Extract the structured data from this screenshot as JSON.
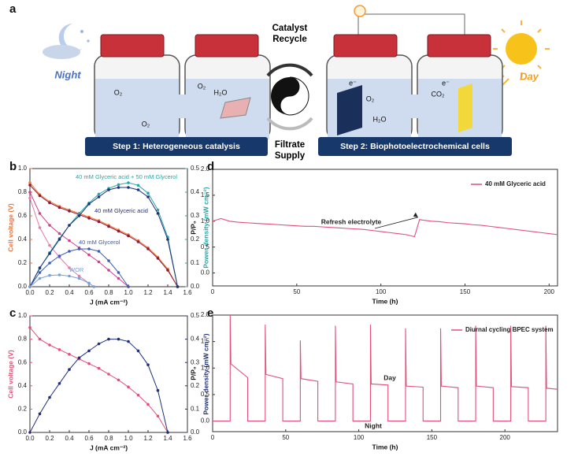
{
  "panel_a": {
    "panel": "a",
    "night": "Night",
    "day": "Day",
    "catalyst_recycle": [
      "Catalyst",
      "Recycle"
    ],
    "filtrate_supply": [
      "Filtrate",
      "Supply"
    ],
    "step1": "Step 1: Heterogeneous catalysis",
    "step2": "Step 2: Biophotoelectrochemical cells",
    "labels": [
      "O₂",
      "O₂",
      "O₂",
      "H₂O",
      "O₂",
      "H₂O",
      "CO₂",
      "e⁻",
      "e⁻"
    ]
  },
  "chart_data": [
    {
      "type": "line",
      "panel": "b",
      "markers": true,
      "legend": false,
      "xlabel": "J (mA cm⁻²)",
      "ylabel": "Cell voltage (V)",
      "y2label": "Power density (mW cm⁻²)",
      "ylabel_color": "#e8733a",
      "y2label_color": "#2aa5a5",
      "xlim": [
        0,
        1.6
      ],
      "ylim": [
        0,
        1.0
      ],
      "y2lim": [
        0,
        0.5
      ],
      "xticks": [
        {
          "value": 0,
          "label": "0.0"
        },
        0.2,
        0.4,
        0.6,
        0.8,
        {
          "value": 1,
          "label": "1.0"
        },
        1.2,
        1.4,
        1.6
      ],
      "yticks": [
        {
          "value": 0,
          "label": "0.0"
        },
        0.2,
        0.4,
        0.6,
        0.8,
        {
          "value": 1,
          "label": "1.0"
        }
      ],
      "y2ticks": [
        {
          "value": 0,
          "label": "0.0"
        },
        0.1,
        0.2,
        0.3,
        0.4,
        0.5
      ],
      "series": [
        {
          "color": "#f07830",
          "axis": "y",
          "x": [
            0,
            0.1,
            0.2,
            0.3,
            0.4,
            0.5,
            0.6,
            0.7,
            0.8,
            0.9,
            1.0,
            1.1,
            1.2,
            1.3,
            1.4,
            1.5
          ],
          "values": [
            0.88,
            0.78,
            0.72,
            0.68,
            0.65,
            0.62,
            0.59,
            0.56,
            0.52,
            0.48,
            0.44,
            0.39,
            0.33,
            0.25,
            0.15,
            0.0
          ]
        },
        {
          "color": "#8b1a3a",
          "axis": "y",
          "x": [
            0,
            0.1,
            0.2,
            0.3,
            0.4,
            0.5,
            0.6,
            0.7,
            0.8,
            0.9,
            1.0,
            1.1,
            1.2,
            1.3,
            1.4,
            1.5
          ],
          "values": [
            0.86,
            0.77,
            0.71,
            0.67,
            0.64,
            0.61,
            0.58,
            0.55,
            0.51,
            0.47,
            0.43,
            0.38,
            0.32,
            0.24,
            0.14,
            0.0
          ]
        },
        {
          "color": "#d0408a",
          "axis": "y",
          "x": [
            0,
            0.1,
            0.2,
            0.3,
            0.4,
            0.5,
            0.6,
            0.7,
            0.8,
            0.9,
            1.0
          ],
          "values": [
            0.8,
            0.62,
            0.52,
            0.45,
            0.39,
            0.33,
            0.27,
            0.21,
            0.14,
            0.07,
            0.0
          ]
        },
        {
          "color": "#e87aa8",
          "axis": "y",
          "x": [
            0,
            0.1,
            0.2,
            0.3,
            0.4,
            0.5,
            0.6,
            0.65
          ],
          "values": [
            0.75,
            0.5,
            0.35,
            0.25,
            0.16,
            0.09,
            0.03,
            0.0
          ]
        },
        {
          "name": "40 mM Glyceric acid + 50 mM Glycerol",
          "color": "#2aa5a5",
          "axis": "y2",
          "x": [
            0,
            0.1,
            0.2,
            0.3,
            0.4,
            0.5,
            0.6,
            0.7,
            0.8,
            0.9,
            1.0,
            1.1,
            1.2,
            1.3,
            1.4,
            1.5
          ],
          "values": [
            0,
            0.078,
            0.144,
            0.204,
            0.26,
            0.31,
            0.354,
            0.392,
            0.416,
            0.432,
            0.44,
            0.429,
            0.396,
            0.325,
            0.21,
            0
          ]
        },
        {
          "name": "40 mM Glyceric acid",
          "color": "#1f2f7a",
          "axis": "y2",
          "x": [
            0,
            0.1,
            0.2,
            0.3,
            0.4,
            0.5,
            0.6,
            0.7,
            0.8,
            0.9,
            1.0,
            1.1,
            1.2,
            1.3,
            1.4,
            1.5
          ],
          "values": [
            0,
            0.08,
            0.14,
            0.2,
            0.26,
            0.3,
            0.35,
            0.38,
            0.41,
            0.42,
            0.42,
            0.41,
            0.38,
            0.31,
            0.2,
            0
          ]
        },
        {
          "name": "40 mM Glycerol",
          "color": "#3a5bb5",
          "axis": "y2",
          "x": [
            0,
            0.1,
            0.2,
            0.3,
            0.4,
            0.5,
            0.6,
            0.7,
            0.8,
            0.9,
            1.0
          ],
          "values": [
            0,
            0.06,
            0.1,
            0.13,
            0.15,
            0.16,
            0.16,
            0.15,
            0.11,
            0.06,
            0
          ]
        },
        {
          "name": "WOR",
          "color": "#7aa0d8",
          "axis": "y2",
          "x": [
            0,
            0.1,
            0.2,
            0.3,
            0.4,
            0.5,
            0.6,
            0.65
          ],
          "values": [
            0,
            0.035,
            0.048,
            0.05,
            0.045,
            0.035,
            0.015,
            0
          ]
        }
      ]
    },
    {
      "type": "line",
      "panel": "c",
      "markers": true,
      "legend": false,
      "xlabel": "J (mA cm⁻²)",
      "ylabel": "Cell voltage (V)",
      "y2label": "Power density (mW cm⁻²)",
      "ylabel_color": "#e0507a",
      "y2label_color": "#1f2f7a",
      "xlim": [
        0,
        1.6
      ],
      "ylim": [
        0,
        1.0
      ],
      "y2lim": [
        0,
        0.5
      ],
      "xticks": [
        {
          "value": 0,
          "label": "0.0"
        },
        0.2,
        0.4,
        0.6,
        0.8,
        {
          "value": 1,
          "label": "1.0"
        },
        1.2,
        1.4,
        1.6
      ],
      "yticks": [
        {
          "value": 0,
          "label": "0.0"
        },
        0.2,
        0.4,
        0.6,
        0.8,
        {
          "value": 1,
          "label": "1.0"
        }
      ],
      "y2ticks": [
        {
          "value": 0,
          "label": "0.0"
        },
        0.1,
        0.2,
        0.3,
        0.4,
        0.5
      ],
      "series": [
        {
          "color": "#e0507a",
          "axis": "y",
          "x": [
            0,
            0.1,
            0.2,
            0.3,
            0.4,
            0.5,
            0.6,
            0.7,
            0.8,
            0.9,
            1.0,
            1.1,
            1.2,
            1.3,
            1.4
          ],
          "values": [
            0.9,
            0.8,
            0.75,
            0.71,
            0.67,
            0.63,
            0.59,
            0.55,
            0.5,
            0.45,
            0.39,
            0.32,
            0.24,
            0.14,
            0.0
          ]
        },
        {
          "color": "#1f2f7a",
          "axis": "y2",
          "x": [
            0,
            0.1,
            0.2,
            0.3,
            0.4,
            0.5,
            0.6,
            0.7,
            0.8,
            0.9,
            1.0,
            1.1,
            1.2,
            1.3,
            1.4
          ],
          "values": [
            0,
            0.08,
            0.15,
            0.21,
            0.27,
            0.32,
            0.35,
            0.38,
            0.4,
            0.4,
            0.39,
            0.35,
            0.29,
            0.18,
            0
          ]
        }
      ]
    },
    {
      "type": "line",
      "panel": "d",
      "markers": false,
      "legend": true,
      "xlabel": "Time (h)",
      "ylabel": "P/P₀",
      "xlim": [
        0,
        205
      ],
      "ylim": [
        -0.25,
        2.0
      ],
      "xticks": [
        0,
        50,
        100,
        150,
        200
      ],
      "yticks": [
        {
          "value": 0,
          "label": "0.0"
        },
        0.5,
        {
          "value": 1,
          "label": "1.0"
        },
        1.5,
        {
          "value": 2,
          "label": "2.0"
        }
      ],
      "annotations": [
        "Refresh electrolyte"
      ],
      "series": [
        {
          "name": "40 mM Glyceric acid",
          "color": "#e0507a",
          "x": [
            0,
            5,
            10,
            15,
            20,
            25,
            30,
            35,
            40,
            45,
            50,
            55,
            60,
            65,
            70,
            75,
            80,
            85,
            90,
            95,
            100,
            105,
            110,
            115,
            120,
            123,
            125,
            130,
            135,
            140,
            145,
            150,
            155,
            160,
            165,
            170,
            175,
            180,
            185,
            190,
            195,
            200,
            205
          ],
          "values": [
            1.0,
            1.05,
            1.0,
            0.98,
            0.97,
            0.96,
            0.95,
            0.94,
            0.93,
            0.92,
            0.91,
            0.9,
            0.9,
            0.89,
            0.88,
            0.87,
            0.86,
            0.85,
            0.84,
            0.82,
            0.8,
            0.78,
            0.76,
            0.74,
            0.7,
            1.03,
            1.02,
            1.0,
            0.99,
            0.97,
            0.96,
            0.95,
            0.93,
            0.92,
            0.9,
            0.88,
            0.86,
            0.84,
            0.82,
            0.8,
            0.78,
            0.76,
            0.74
          ]
        }
      ]
    },
    {
      "type": "line",
      "panel": "e",
      "markers": false,
      "legend": true,
      "xlabel": "Time (h)",
      "ylabel": "P/P₀",
      "xlim": [
        0,
        236
      ],
      "ylim": [
        -0.2,
        2.0
      ],
      "xticks": [
        0,
        50,
        100,
        150,
        200
      ],
      "yticks": [
        {
          "value": 0,
          "label": "0.0"
        },
        0.5,
        {
          "value": 1,
          "label": "1.0"
        },
        1.5,
        {
          "value": 2,
          "label": "2.0"
        }
      ],
      "annotations": [
        "Day",
        "Night"
      ],
      "series": [
        {
          "name": "Diurnal cycling BPEC system",
          "color": "#e0507a",
          "x": [
            0,
            12,
            12,
            12.5,
            24,
            24,
            36,
            36,
            36.5,
            48,
            48,
            60,
            60,
            60.5,
            72,
            72,
            84,
            84,
            84.5,
            96,
            96,
            108,
            108,
            108.5,
            120,
            120,
            132,
            132,
            132.5,
            144,
            144,
            156,
            156,
            156.5,
            168,
            168,
            180,
            180,
            180.5,
            192,
            192,
            204,
            204,
            204.5,
            216,
            216,
            228,
            228,
            228.5,
            236
          ],
          "values": [
            0,
            0,
            2.0,
            1.08,
            0.82,
            0,
            0,
            1.82,
            0.88,
            0.8,
            0,
            0,
            1.52,
            0.8,
            0.75,
            0,
            0,
            1.8,
            0.74,
            0.7,
            0,
            0,
            1.82,
            0.7,
            0.68,
            0,
            0,
            1.75,
            0.66,
            0.64,
            0,
            0,
            1.75,
            0.66,
            0.63,
            0,
            0,
            1.8,
            0.66,
            0.63,
            0,
            0,
            1.8,
            0.65,
            0.63,
            0,
            0,
            1.8,
            0.62,
            0.6
          ]
        }
      ]
    }
  ]
}
